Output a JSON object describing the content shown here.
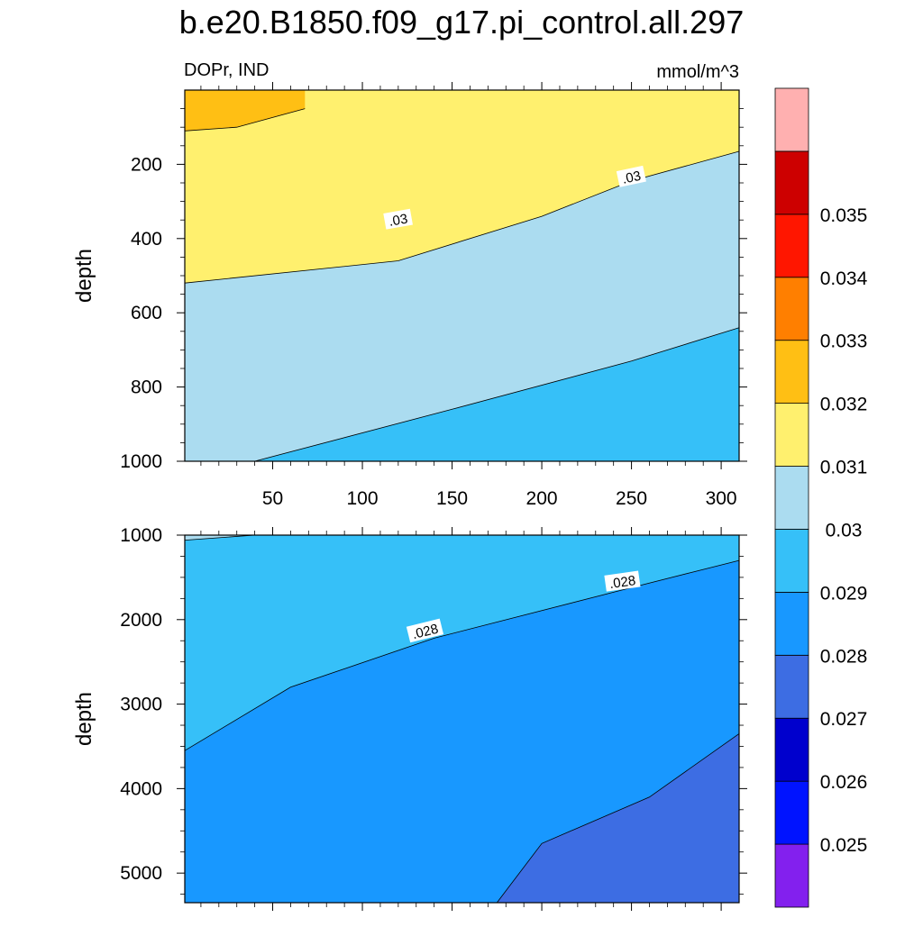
{
  "chart_data": {
    "type": "contour",
    "title": "b.e20.B1850.f09_g17.pi_control.all.297",
    "left_subtitle": "DOPr, IND",
    "right_subtitle": "mmol/m^3",
    "ylabel": "depth",
    "x_ticks": [
      50,
      100,
      150,
      200,
      250,
      300
    ],
    "xlim": [
      1,
      310
    ],
    "panels": [
      {
        "name": "upper",
        "ylim": [
          0,
          1000
        ],
        "y_ticks": [
          200,
          400,
          600,
          800,
          1000
        ],
        "contour_labels": [
          ".03",
          ".03"
        ],
        "regions": [
          {
            "level": "0.031-0.032",
            "color": "#FFBF14",
            "boundary": [
              [
                1,
                0
              ],
              [
                68,
                0
              ],
              [
                68,
                50
              ],
              [
                30,
                100
              ],
              [
                1,
                110
              ]
            ]
          },
          {
            "level": "0.03-0.031",
            "color": "#FFF06E",
            "boundary_line": [
              [
                1,
                520
              ],
              [
                120,
                460
              ],
              [
                200,
                340
              ],
              [
                250,
                245
              ],
              [
                310,
                165
              ]
            ]
          },
          {
            "level": "0.029-0.03",
            "color": "#ABDCF0",
            "boundary_line": [
              [
                40,
                1000
              ],
              [
                150,
                860
              ],
              [
                250,
                730
              ],
              [
                310,
                640
              ]
            ]
          },
          {
            "level": "0.028-0.029",
            "color": "#36C0F8"
          }
        ]
      },
      {
        "name": "lower",
        "ylim": [
          1000,
          5350
        ],
        "y_ticks": [
          1000,
          2000,
          3000,
          4000,
          5000
        ],
        "contour_labels": [
          ".028",
          ".028"
        ],
        "regions": [
          {
            "level": "0.029-0.03",
            "color": "#ABDCF0",
            "boundary": [
              [
                1,
                1000
              ],
              [
                40,
                1000
              ],
              [
                1,
                1060
              ]
            ]
          },
          {
            "level": "0.028-0.029",
            "color": "#36C0F8"
          },
          {
            "level": "0.027-0.028",
            "color": "#1898FF",
            "boundary_line": [
              [
                1,
                3550
              ],
              [
                60,
                2800
              ],
              [
                140,
                2220
              ],
              [
                250,
                1620
              ],
              [
                310,
                1300
              ]
            ]
          },
          {
            "level": "0.026-0.027",
            "color": "#3D6DE3",
            "boundary_line": [
              [
                175,
                5350
              ],
              [
                200,
                4650
              ],
              [
                260,
                4100
              ],
              [
                310,
                3350
              ]
            ]
          }
        ]
      }
    ],
    "colorbar": {
      "colors": [
        "#8320EE",
        "#0013FF",
        "#0000CD",
        "#3D6DE3",
        "#1898FF",
        "#36C0F8",
        "#ABDCF0",
        "#FFF06E",
        "#FFBF14",
        "#FF7F00",
        "#FF1600",
        "#CD0000",
        "#FFB0B0"
      ],
      "labels": [
        "0.025",
        "0.026",
        "0.027",
        "0.028",
        "0.029",
        "0.03",
        "0.031",
        "0.032",
        "0.033",
        "0.034",
        "0.035"
      ]
    }
  }
}
